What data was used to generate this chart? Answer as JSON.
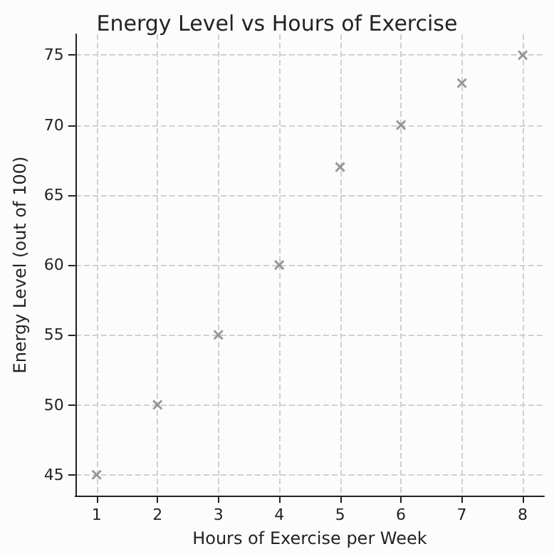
{
  "chart_data": {
    "type": "scatter",
    "title": "Energy Level vs Hours of Exercise",
    "xlabel": "Hours of Exercise per Week",
    "ylabel": "Energy Level (out of 100)",
    "x": [
      1,
      2,
      3,
      4,
      5,
      6,
      7,
      8
    ],
    "values": [
      45,
      50,
      55,
      60,
      67,
      70,
      73,
      75
    ],
    "color": "#808080",
    "marker": "cross",
    "xlim": [
      0.65,
      8.35
    ],
    "xticks": [
      1,
      2,
      3,
      4,
      5,
      6,
      7,
      8
    ],
    "ylim": [
      43.5,
      76.5
    ],
    "yticks": [
      45,
      50,
      55,
      60,
      65,
      70,
      75
    ],
    "grid": true
  }
}
